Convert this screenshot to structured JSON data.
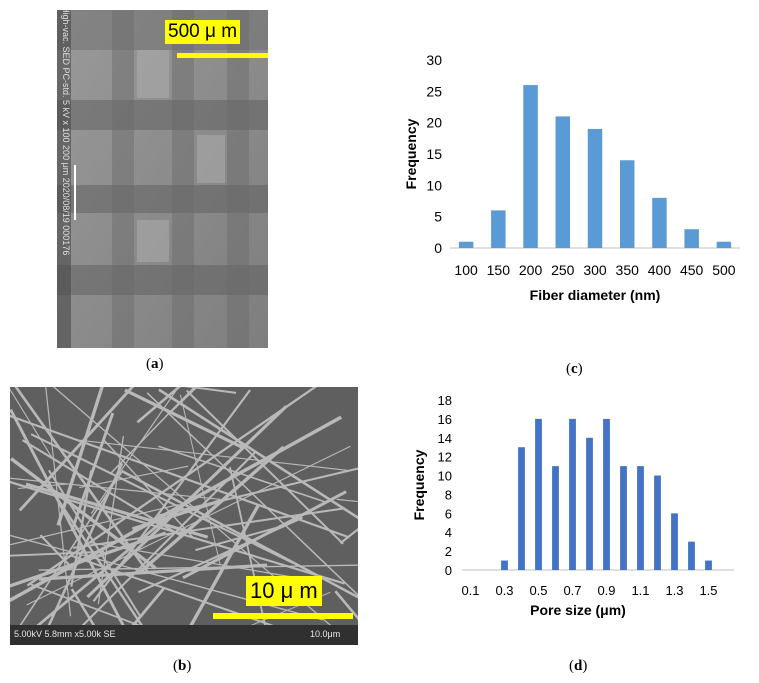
{
  "panels": {
    "a": {
      "caption_letter": "a",
      "scale_label": "500 μ m",
      "side_text": "High-vac. SED PC-std. 5 kV x 100 200 μm 2020/08/19 000176"
    },
    "b": {
      "caption_letter": "b",
      "scale_label": "10 μ m",
      "info_text": "5.00kV 5.8mm x5.00k SE",
      "scale_text": "10.0μm"
    },
    "c": {
      "caption_letter": "c"
    },
    "d": {
      "caption_letter": "d"
    }
  },
  "colors": {
    "bar": "#5b9bd5",
    "scalebar": "#ffff00"
  },
  "chart_data": [
    {
      "id": "c",
      "type": "bar",
      "categories": [
        "100",
        "150",
        "200",
        "250",
        "300",
        "350",
        "400",
        "450",
        "500"
      ],
      "values": [
        1,
        6,
        26,
        21,
        19,
        14,
        8,
        3,
        1
      ],
      "yticks": [
        "0",
        "5",
        "10",
        "15",
        "20",
        "25",
        "30"
      ],
      "ylim": [
        0,
        30
      ],
      "xlabel": "Fiber diameter (nm)",
      "ylabel": "Frequency",
      "grid": false
    },
    {
      "id": "d",
      "type": "bar",
      "x": [
        0.1,
        0.2,
        0.3,
        0.4,
        0.5,
        0.6,
        0.7,
        0.8,
        0.9,
        1.0,
        1.1,
        1.2,
        1.3,
        1.4,
        1.5,
        1.6
      ],
      "values": [
        0,
        0,
        1,
        13,
        16,
        11,
        16,
        14,
        16,
        11,
        11,
        10,
        6,
        3,
        1,
        0
      ],
      "xticks": [
        "0.1",
        "0.3",
        "0.5",
        "0.7",
        "0.9",
        "1.1",
        "1.3",
        "1.5"
      ],
      "yticks": [
        "0",
        "2",
        "4",
        "6",
        "8",
        "10",
        "12",
        "14",
        "16",
        "18"
      ],
      "ylim": [
        0,
        18
      ],
      "xlabel": "Pore size (μm)",
      "ylabel": "Frequency",
      "grid": false
    }
  ]
}
